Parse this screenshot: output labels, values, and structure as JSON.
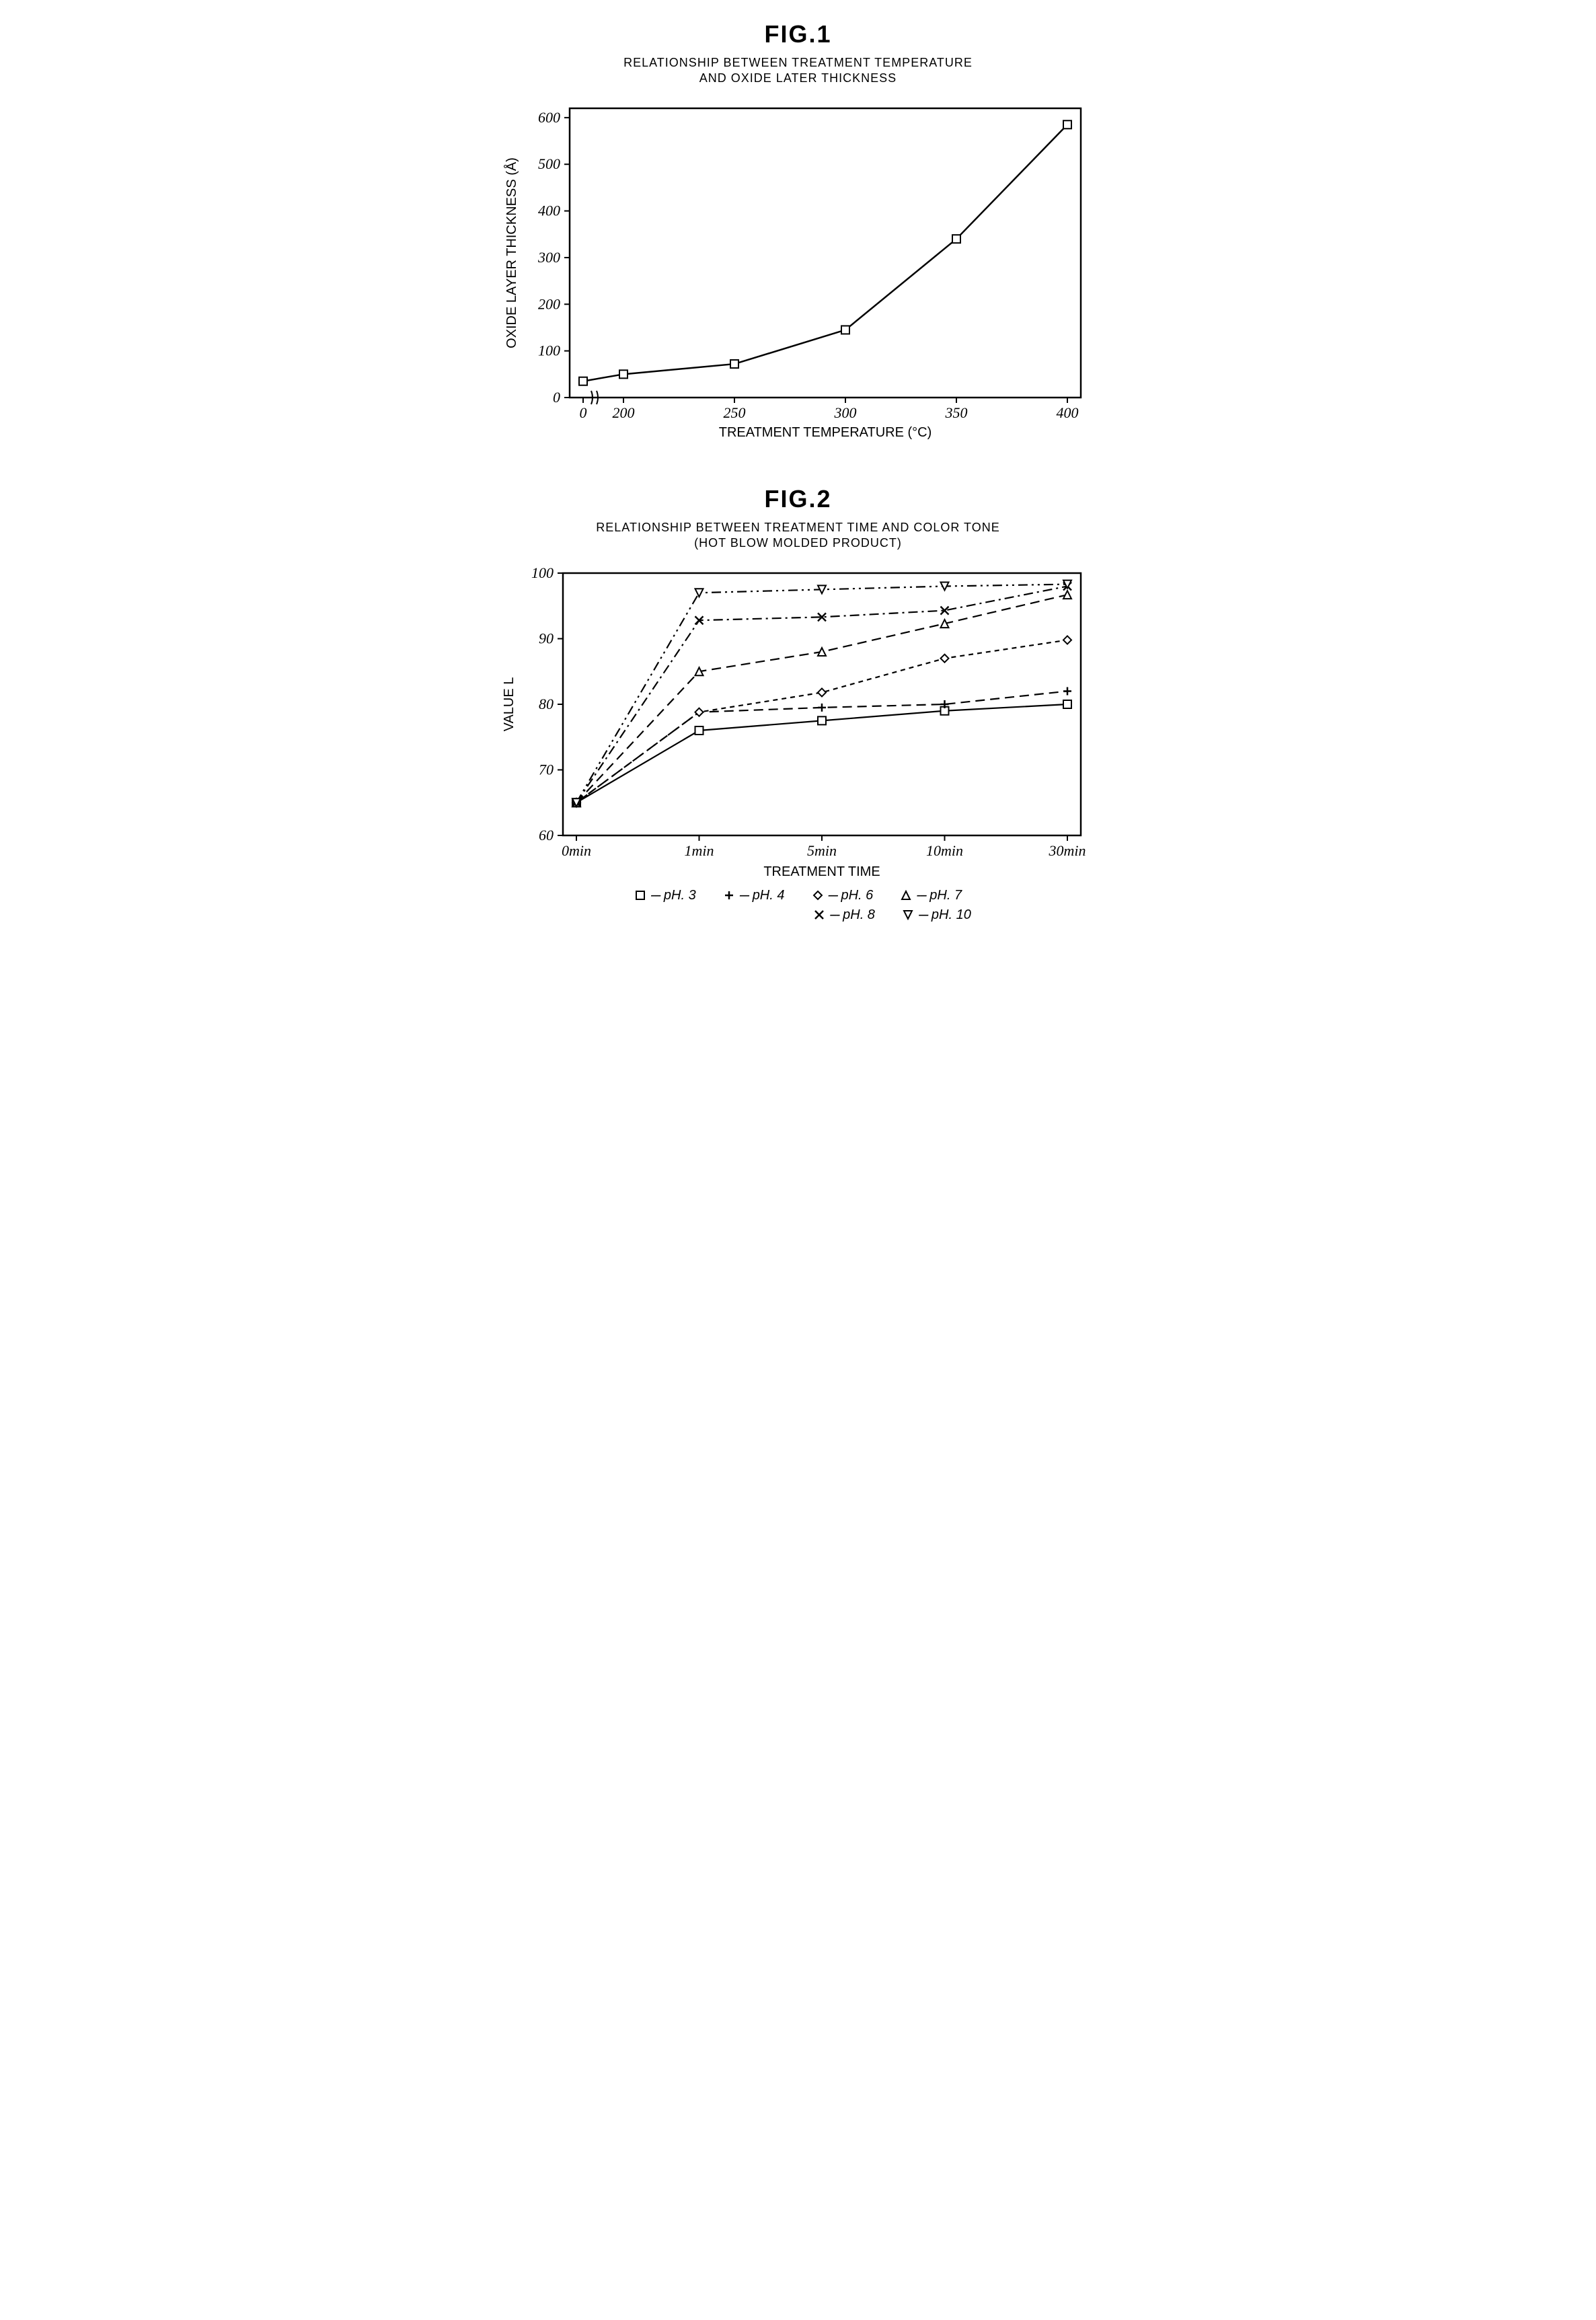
{
  "fig1": {
    "heading": "FIG.1",
    "subtitle_line1": "RELATIONSHIP BETWEEN TREATMENT TEMPERATURE",
    "subtitle_line2": "AND OXIDE LATER THICKNESS",
    "type": "line",
    "xlabel": "TREATMENT TEMPERATURE (°C)",
    "ylabel": "OXIDE LAYER THICKNESS (Å)",
    "x_ticks": [
      0,
      200,
      250,
      300,
      350,
      400
    ],
    "x_tick_labels": [
      "0",
      "200",
      "250",
      "300",
      "350",
      "400"
    ],
    "y_ticks": [
      0,
      100,
      200,
      300,
      400,
      500,
      600
    ],
    "y_tick_labels": [
      "0",
      "100",
      "200",
      "300",
      "400",
      "500",
      "600"
    ],
    "ylim": [
      0,
      620
    ],
    "x_break_after_first": true,
    "series": {
      "marker": "square-open",
      "line_color": "#000000",
      "line_width": 2.5,
      "marker_size": 12,
      "points": [
        {
          "x": 0,
          "y": 35
        },
        {
          "x": 200,
          "y": 50
        },
        {
          "x": 250,
          "y": 72
        },
        {
          "x": 300,
          "y": 145
        },
        {
          "x": 350,
          "y": 340
        },
        {
          "x": 400,
          "y": 585
        }
      ]
    },
    "plot_bg": "#ffffff",
    "axis_color": "#000000",
    "tick_fontsize": 22,
    "label_fontsize": 20
  },
  "fig2": {
    "heading": "FIG.2",
    "subtitle_line1": "RELATIONSHIP BETWEEN TREATMENT TIME AND COLOR TONE",
    "subtitle_line2": "(HOT BLOW MOLDED PRODUCT)",
    "type": "line-multi",
    "xlabel": "TREATMENT TIME",
    "ylabel": "VALUE L",
    "x_categories": [
      "0min",
      "1min",
      "5min",
      "10min",
      "30min"
    ],
    "y_ticks": [
      60,
      70,
      80,
      90,
      100
    ],
    "y_tick_labels": [
      "60",
      "70",
      "80",
      "90",
      "100"
    ],
    "ylim": [
      60,
      100
    ],
    "line_color": "#000000",
    "line_width": 2.2,
    "marker_size": 12,
    "series": [
      {
        "id": "pH3",
        "label": "pH. 3",
        "marker": "square-open",
        "dash": "solid",
        "values": [
          65,
          76,
          77.5,
          79,
          80
        ]
      },
      {
        "id": "pH4",
        "label": "pH. 4",
        "marker": "plus",
        "dash": "long-dash",
        "values": [
          65,
          78.8,
          79.5,
          80,
          82
        ]
      },
      {
        "id": "pH6",
        "label": "pH. 6",
        "marker": "diamond-open",
        "dash": "short-dash",
        "values": [
          65,
          78.8,
          81.8,
          87,
          89.8
        ]
      },
      {
        "id": "pH7",
        "label": "pH. 7",
        "marker": "triangle-open",
        "dash": "long-dash",
        "values": [
          65,
          85,
          88,
          92.3,
          96.7
        ]
      },
      {
        "id": "pH8",
        "label": "pH. 8",
        "marker": "x",
        "dash": "dash-dot",
        "values": [
          65,
          92.8,
          93.3,
          94.3,
          98
        ]
      },
      {
        "id": "pH10",
        "label": "pH. 10",
        "marker": "triangle-down-open",
        "dash": "dash-dot-dot",
        "values": [
          65,
          97,
          97.5,
          98,
          98.3
        ]
      }
    ],
    "legend_rows": [
      [
        "pH3",
        "pH4",
        "pH6",
        "pH7"
      ],
      [
        "pH8",
        "pH10"
      ]
    ],
    "plot_bg": "#ffffff",
    "axis_color": "#000000",
    "tick_fontsize": 22,
    "label_fontsize": 20
  }
}
